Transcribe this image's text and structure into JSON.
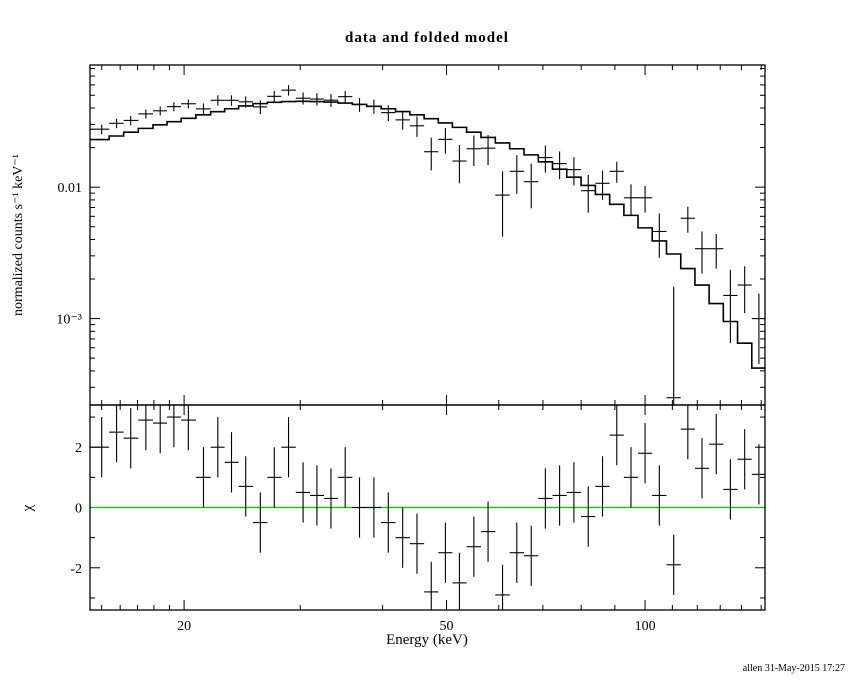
{
  "chart_data": {
    "type": "scatter",
    "title": "data and folded model",
    "footer": "allen 31-May-2015 17:27",
    "panels": [
      {
        "name": "spectrum",
        "description": "data points with errors and folded model histogram, log-log"
      },
      {
        "name": "residuals",
        "description": "chi residuals with unit error bars and green zero line"
      }
    ],
    "x_axis": {
      "label": "Energy (keV)",
      "scale": "log",
      "min": 14.4,
      "max": 152,
      "major_ticks": [
        {
          "v": 20,
          "label": "20"
        },
        {
          "v": 50,
          "label": "50"
        },
        {
          "v": 100,
          "label": "100"
        }
      ],
      "minor_ticks": [
        15,
        16,
        17,
        18,
        19,
        30,
        40,
        60,
        70,
        80,
        90,
        110,
        120,
        130,
        140,
        150
      ]
    },
    "y_top": {
      "label": "normalized counts s⁻¹ keV⁻¹",
      "scale": "log",
      "min": 0.00022,
      "max": 0.085,
      "major_ticks": [
        {
          "v": 0.01,
          "label": "0.01"
        },
        {
          "v": 0.001,
          "label": "10⁻³"
        }
      ],
      "minor_ticks": [
        0.0003,
        0.0004,
        0.0005,
        0.0006,
        0.0007,
        0.0008,
        0.0009,
        0.002,
        0.003,
        0.004,
        0.005,
        0.006,
        0.007,
        0.008,
        0.009,
        0.02,
        0.03,
        0.04,
        0.05,
        0.06,
        0.07,
        0.08
      ]
    },
    "y_bottom": {
      "label": "χ",
      "scale": "linear",
      "min": -3.4,
      "max": 3.4,
      "major_ticks": [
        {
          "v": -2,
          "label": "-2"
        },
        {
          "v": 0,
          "label": "0"
        },
        {
          "v": 2,
          "label": "2"
        }
      ],
      "minor_ticks": [
        -3,
        -1,
        1,
        3
      ]
    },
    "series": {
      "columns": [
        "energy_keV",
        "rate",
        "rate_err",
        "model",
        "chi"
      ],
      "chi_err": 1.0,
      "points": [
        [
          15.0,
          0.0276,
          0.0023,
          0.023,
          2.0
        ],
        [
          15.8,
          0.0306,
          0.0025,
          0.0245,
          2.5
        ],
        [
          16.6,
          0.0322,
          0.0026,
          0.0262,
          2.3
        ],
        [
          17.5,
          0.0361,
          0.0028,
          0.028,
          2.9
        ],
        [
          18.4,
          0.0381,
          0.003,
          0.0298,
          2.8
        ],
        [
          19.3,
          0.041,
          0.0032,
          0.0315,
          3.0
        ],
        [
          20.3,
          0.0431,
          0.0033,
          0.0334,
          2.9
        ],
        [
          21.4,
          0.0394,
          0.0039,
          0.0355,
          1.0
        ],
        [
          22.5,
          0.0458,
          0.0041,
          0.0375,
          2.0
        ],
        [
          23.6,
          0.0458,
          0.0042,
          0.0395,
          1.5
        ],
        [
          24.8,
          0.0446,
          0.0044,
          0.0415,
          0.7
        ],
        [
          26.1,
          0.0408,
          0.0048,
          0.0432,
          -0.5
        ],
        [
          27.4,
          0.0491,
          0.0049,
          0.0442,
          1.0
        ],
        [
          28.8,
          0.0547,
          0.005,
          0.0448,
          2.0
        ],
        [
          30.3,
          0.0475,
          0.005,
          0.045,
          0.5
        ],
        [
          31.8,
          0.0468,
          0.005,
          0.0448,
          0.4
        ],
        [
          33.4,
          0.0459,
          0.0051,
          0.0444,
          0.3
        ],
        [
          35.1,
          0.0488,
          0.0052,
          0.0436,
          1.0
        ],
        [
          36.9,
          0.0426,
          0.0052,
          0.0426,
          0.0
        ],
        [
          38.8,
          0.0412,
          0.0051,
          0.0412,
          0.0
        ],
        [
          40.8,
          0.0369,
          0.0051,
          0.0395,
          -0.5
        ],
        [
          42.9,
          0.0325,
          0.0051,
          0.0376,
          -1.0
        ],
        [
          45.1,
          0.0293,
          0.0052,
          0.0355,
          -1.2
        ],
        [
          47.4,
          0.0186,
          0.0052,
          0.0332,
          -2.8
        ],
        [
          49.8,
          0.0231,
          0.0051,
          0.0308,
          -1.5
        ],
        [
          52.3,
          0.0158,
          0.0051,
          0.0285,
          -2.5
        ],
        [
          55.0,
          0.0196,
          0.0051,
          0.0262,
          -1.3
        ],
        [
          57.8,
          0.0198,
          0.0051,
          0.0239,
          -0.8
        ],
        [
          60.8,
          0.0087,
          0.0045,
          0.0217,
          -2.9
        ],
        [
          63.9,
          0.0132,
          0.0043,
          0.0196,
          -1.5
        ],
        [
          67.2,
          0.011,
          0.0041,
          0.0176,
          -1.6
        ],
        [
          70.6,
          0.0168,
          0.0039,
          0.0156,
          0.3
        ],
        [
          74.2,
          0.0151,
          0.0036,
          0.0137,
          0.4
        ],
        [
          78.0,
          0.0136,
          0.0033,
          0.0119,
          0.5
        ],
        [
          82.0,
          0.0094,
          0.003,
          0.0103,
          -0.3
        ],
        [
          86.2,
          0.0107,
          0.0027,
          0.0088,
          0.7
        ],
        [
          90.6,
          0.0132,
          0.0024,
          0.0074,
          2.4
        ],
        [
          95.2,
          0.0083,
          0.0022,
          0.0061,
          1.0
        ],
        [
          100.0,
          0.0083,
          0.0019,
          0.0049,
          1.8
        ],
        [
          105.1,
          0.0046,
          0.0017,
          0.0039,
          0.4
        ],
        [
          110.5,
          0.00025,
          0.0015,
          0.0031,
          -1.9
        ],
        [
          116.1,
          0.0058,
          0.0013,
          0.0024,
          2.6
        ],
        [
          122.0,
          0.0034,
          0.0012,
          0.0018,
          1.3
        ],
        [
          128.2,
          0.0034,
          0.001,
          0.0013,
          2.1
        ],
        [
          134.7,
          0.0015,
          0.00085,
          0.00095,
          0.6
        ],
        [
          141.6,
          0.0018,
          0.0007,
          0.00065,
          1.6
        ],
        [
          148.8,
          0.001,
          0.00055,
          0.00042,
          1.1
        ]
      ]
    },
    "colors": {
      "data": "#000000",
      "model": "#000000",
      "zero_line": "#00cc00",
      "background": "#ffffff"
    }
  }
}
